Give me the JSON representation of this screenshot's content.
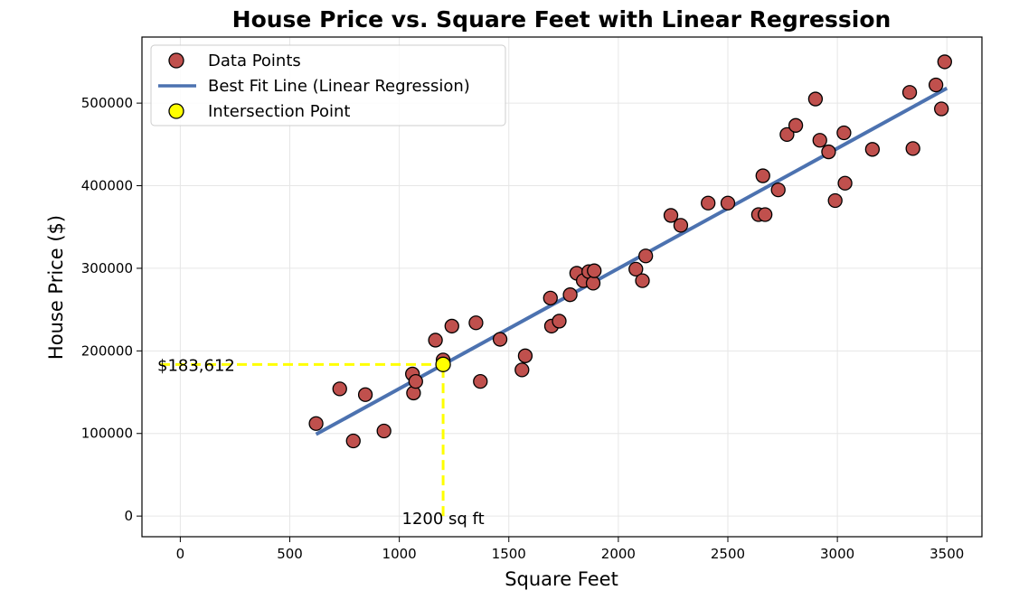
{
  "chart_data": {
    "type": "scatter",
    "title": "House Price vs. Square Feet with Linear Regression",
    "xlabel": "Square Feet",
    "ylabel": "House Price ($)",
    "xlim": [
      -175,
      3660
    ],
    "ylim": [
      -25000,
      580000
    ],
    "xticks": [
      0,
      500,
      1000,
      1500,
      2000,
      2500,
      3000,
      3500
    ],
    "yticks": [
      0,
      100000,
      200000,
      300000,
      400000,
      500000
    ],
    "grid": true,
    "legend": {
      "placement": "top-left",
      "entries": [
        {
          "label": "Data Points",
          "kind": "marker",
          "color": "#c0504d"
        },
        {
          "label": "Best Fit Line (Linear Regression)",
          "kind": "line",
          "color": "#4c72b0"
        },
        {
          "label": "Intersection Point",
          "kind": "marker",
          "color": "#ffff00"
        }
      ]
    },
    "series": [
      {
        "name": "Data Points",
        "kind": "scatter",
        "color": "#c0504d",
        "points": [
          [
            620,
            112000
          ],
          [
            728,
            154000
          ],
          [
            790,
            91000
          ],
          [
            845,
            147000
          ],
          [
            930,
            103000
          ],
          [
            1060,
            172000
          ],
          [
            1065,
            149000
          ],
          [
            1075,
            163000
          ],
          [
            1165,
            213000
          ],
          [
            1200,
            189000
          ],
          [
            1240,
            230000
          ],
          [
            1350,
            234000
          ],
          [
            1370,
            163000
          ],
          [
            1460,
            214000
          ],
          [
            1560,
            177000
          ],
          [
            1575,
            194000
          ],
          [
            1690,
            264000
          ],
          [
            1695,
            230000
          ],
          [
            1730,
            236000
          ],
          [
            1780,
            268000
          ],
          [
            1810,
            294000
          ],
          [
            1840,
            285000
          ],
          [
            1865,
            296000
          ],
          [
            1885,
            282000
          ],
          [
            1890,
            297000
          ],
          [
            2080,
            299000
          ],
          [
            2110,
            285000
          ],
          [
            2125,
            315000
          ],
          [
            2240,
            364000
          ],
          [
            2285,
            352000
          ],
          [
            2410,
            379000
          ],
          [
            2500,
            379000
          ],
          [
            2640,
            365000
          ],
          [
            2660,
            412000
          ],
          [
            2670,
            365000
          ],
          [
            2730,
            395000
          ],
          [
            2770,
            462000
          ],
          [
            2810,
            473000
          ],
          [
            2900,
            505000
          ],
          [
            2920,
            455000
          ],
          [
            2960,
            441000
          ],
          [
            2990,
            382000
          ],
          [
            3030,
            464000
          ],
          [
            3035,
            403000
          ],
          [
            3160,
            444000
          ],
          [
            3330,
            513000
          ],
          [
            3345,
            445000
          ],
          [
            3450,
            522000
          ],
          [
            3475,
            493000
          ],
          [
            3490,
            550000
          ]
        ]
      },
      {
        "name": "Best Fit Line (Linear Regression)",
        "kind": "line",
        "color": "#4c72b0",
        "x": [
          620,
          3500
        ],
        "y": [
          99000,
          518000
        ]
      },
      {
        "name": "Intersection Point",
        "kind": "point",
        "color": "#ffff00",
        "x": 1200,
        "y": 183612
      }
    ],
    "annotations": [
      {
        "text": "$183,612",
        "anchor": "y-guide",
        "value": 183612
      },
      {
        "text": "1200 sq ft",
        "anchor": "x-guide",
        "value": 1200
      }
    ],
    "guide_color": "#ffff00"
  }
}
